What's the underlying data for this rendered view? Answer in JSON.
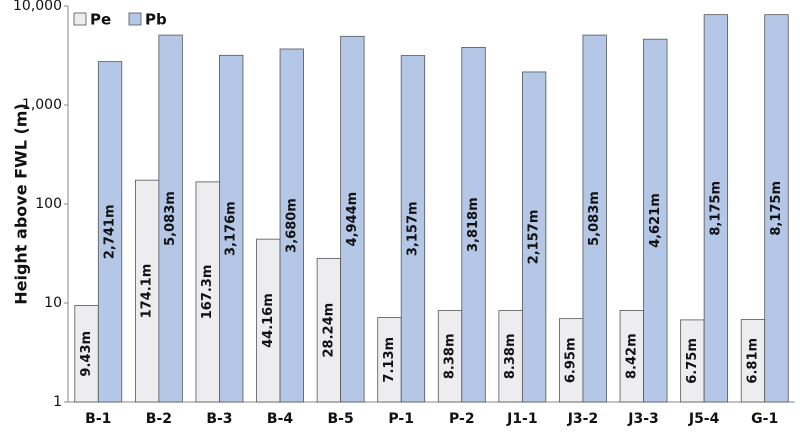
{
  "chart_data": {
    "type": "bar",
    "y_label": "Height above FWL (m)",
    "log_scale": true,
    "legend_position": "upper-left",
    "categories": [
      "B-1",
      "B-2",
      "B-3",
      "B-4",
      "B-5",
      "P-1",
      "P-2",
      "J1-1",
      "J3-2",
      "J3-3",
      "J5-4",
      "G-1"
    ],
    "series": [
      {
        "name": "Pe",
        "color": "#ededf0",
        "values": [
          9.43,
          174.1,
          167.3,
          44.16,
          28.24,
          7.13,
          8.38,
          8.38,
          6.95,
          8.42,
          6.75,
          6.81
        ],
        "value_labels": [
          "9.43m",
          "174.1m",
          "167.3m",
          "44.16m",
          "28.24m",
          "7.13m",
          "8.38m",
          "8.38m",
          "6.95m",
          "8.42m",
          "6.75m",
          "6.81m"
        ]
      },
      {
        "name": "Pb",
        "color": "#b4c7e7",
        "values": [
          2741,
          5083,
          3176,
          3680,
          4944,
          3157,
          3818,
          2157,
          5083,
          4621,
          8175,
          8175
        ],
        "value_labels": [
          "2,741m",
          "5,083m",
          "3,176m",
          "3,680m",
          "4,944m",
          "3,157m",
          "3,818m",
          "2,157m",
          "5,083m",
          "4,621m",
          "8,175m",
          "8,175m"
        ]
      }
    ],
    "ylim": [
      1,
      10000
    ],
    "yticks": [
      1,
      10,
      100,
      {
        "value": 1000,
        "label": "1,000"
      },
      {
        "value": 10000,
        "label": "10,000"
      }
    ]
  }
}
